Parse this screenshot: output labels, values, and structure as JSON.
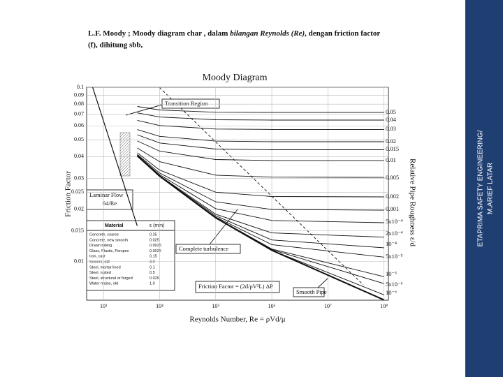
{
  "slide": {
    "heading": [
      "L.F. Moody  ; Moody diagram char , dalam ",
      "bilangan Reynolds (Re)",
      ", dengan friction factor",
      "(f), dihitung sbb,"
    ],
    "sidebar": [
      "ETAPRIMA SAFETY ENGINEERING/",
      "M.ARIEF LATAR"
    ]
  },
  "chart_data": {
    "type": "line",
    "title": "Moody Diagram",
    "x_label": "Reynolds Number, Re = ρVd/μ",
    "y_label": "Friction Factor",
    "y2_label": "Relative Pipe Roughness ε/d",
    "log_x": true,
    "log_y": true,
    "grid": true,
    "color": "#111111",
    "xlim": [
      500,
      120000000
    ],
    "ylim": [
      0.006,
      0.1
    ],
    "xticks": [
      {
        "value": 1000,
        "label": "10³"
      },
      {
        "value": 10000,
        "label": "10⁴"
      },
      {
        "value": 100000,
        "label": "10⁵"
      },
      {
        "value": 1000000,
        "label": "10⁶"
      },
      {
        "value": 10000000,
        "label": "10⁷"
      },
      {
        "value": 100000000,
        "label": "10⁸"
      }
    ],
    "yticks": [
      0.1,
      0.09,
      0.08,
      0.07,
      0.06,
      0.05,
      0.04,
      0.03,
      0.025,
      0.02,
      0.015,
      0.01
    ],
    "x": [
      4000,
      10000,
      100000,
      1000000,
      100000000
    ],
    "annotations": [
      "Transition Region",
      "64/Re",
      "Complete turbulence",
      "Friction Factor = (2d/ρV²L) ΔP"
    ],
    "series": [
      {
        "name": "Laminar Flow",
        "x": [
          640,
          1000,
          2000,
          4000
        ],
        "values": [
          0.1,
          0.064,
          0.032,
          0.016
        ]
      },
      {
        "name": "0.05",
        "values": [
          0.0776,
          0.0741,
          0.0719,
          0.0717,
          0.0717
        ]
      },
      {
        "name": "0.04",
        "values": [
          0.0713,
          0.0675,
          0.0651,
          0.0648,
          0.0648
        ]
      },
      {
        "name": "0.03",
        "values": [
          0.0646,
          0.0603,
          0.0576,
          0.0573,
          0.0573
        ]
      },
      {
        "name": "0.02",
        "values": [
          0.0572,
          0.0523,
          0.0491,
          0.0487,
          0.0487
        ]
      },
      {
        "name": "0.015",
        "values": [
          0.0534,
          0.0479,
          0.0442,
          0.0438,
          0.0438
        ]
      },
      {
        "name": "0.01",
        "values": [
          0.0492,
          0.043,
          0.0385,
          0.038,
          0.038
        ]
      },
      {
        "name": "0.005",
        "values": [
          0.0448,
          0.0374,
          0.0313,
          0.0305,
          0.0304
        ]
      },
      {
        "name": "0.002",
        "values": [
          0.0421,
          0.0335,
          0.025,
          0.0236,
          0.0235
        ]
      },
      {
        "name": "0.001",
        "values": [
          0.0412,
          0.0322,
          0.022,
          0.0199,
          0.0197
        ]
      },
      {
        "name": "5x10⁻⁴",
        "values": [
          0.0408,
          0.0315,
          0.0201,
          0.0172,
          0.0167
        ]
      },
      {
        "name": "2x10⁻⁴",
        "values": [
          0.0405,
          0.0311,
          0.0187,
          0.0146,
          0.0138
        ]
      },
      {
        "name": "10⁻⁴",
        "values": [
          0.0405,
          0.031,
          0.0183,
          0.0133,
          0.012
        ]
      },
      {
        "name": "5x10⁻⁵",
        "values": [
          0.0404,
          0.0309,
          0.018,
          0.0125,
          0.0106
        ]
      },
      {
        "name": "10⁻⁵",
        "values": [
          0.0404,
          0.0309,
          0.0179,
          0.0118,
          0.00819
        ]
      },
      {
        "name": "5x10⁻⁶",
        "values": [
          0.0404,
          0.0309,
          0.0178,
          0.0117,
          0.00747
        ]
      },
      {
        "name": "10⁻⁶",
        "values": [
          0.0404,
          0.0309,
          0.0178,
          0.0116,
          0.00644
        ]
      },
      {
        "name": "Smooth Pipe",
        "values": [
          0.0404,
          0.0309,
          0.0178,
          0.0116,
          0.00602
        ]
      }
    ]
  },
  "material_table": {
    "headers": [
      "Material",
      "ε (mm)"
    ],
    "rows": [
      [
        "Concrete, coarse",
        "0.25"
      ],
      [
        "Concrete, new smooth",
        "0.025"
      ],
      [
        "Drawn tubing",
        "0.0025"
      ],
      [
        "Glass, Plastic, Perspex",
        "0.0025"
      ],
      [
        "Iron, cast",
        "0.15"
      ],
      [
        "Sewers, old",
        "3.0"
      ],
      [
        "Steel, mortar lined",
        "0.1"
      ],
      [
        "Steel, rusted",
        "0.5"
      ],
      [
        "Steel, structural or forged",
        "0.025"
      ],
      [
        "Water mains, old",
        "1.0"
      ]
    ]
  }
}
